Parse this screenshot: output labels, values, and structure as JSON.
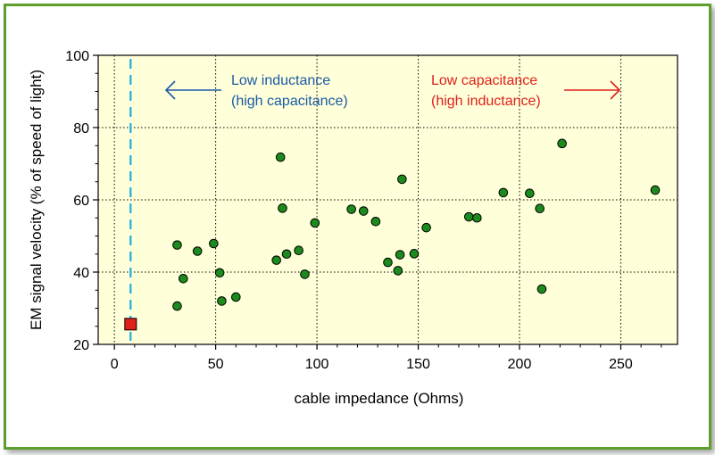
{
  "chart_data": {
    "type": "scatter",
    "xlabel": "cable impedance (Ohms)",
    "ylabel": "EM signal velocity (% of speed of light)",
    "xlim": [
      -8,
      278
    ],
    "ylim": [
      20,
      100
    ],
    "xticks": [
      0,
      50,
      100,
      150,
      200,
      250
    ],
    "yticks": [
      20,
      40,
      60,
      80,
      100
    ],
    "grid": true,
    "background_color": "#ffffd9",
    "point_color": "#1c8a1c",
    "reference": {
      "x": 8,
      "y": 25.6,
      "marker_color": "#e0201c",
      "line_color": "#1ab0e0"
    },
    "annotations": [
      {
        "lines": [
          "Low inductance",
          "(high capacitance)"
        ],
        "color": "#1a5aa8",
        "arrow": "left"
      },
      {
        "lines": [
          "Low capacitance",
          "(high inductance)"
        ],
        "color": "#e0201c",
        "arrow": "right"
      }
    ],
    "points": [
      {
        "x": 31,
        "y": 47.5
      },
      {
        "x": 31,
        "y": 30.6
      },
      {
        "x": 34,
        "y": 38.2
      },
      {
        "x": 41,
        "y": 45.8
      },
      {
        "x": 49,
        "y": 47.9
      },
      {
        "x": 52,
        "y": 39.8
      },
      {
        "x": 53,
        "y": 32.0
      },
      {
        "x": 60,
        "y": 33.1
      },
      {
        "x": 80,
        "y": 43.3
      },
      {
        "x": 82,
        "y": 71.8
      },
      {
        "x": 83,
        "y": 57.7
      },
      {
        "x": 85,
        "y": 45.0
      },
      {
        "x": 91,
        "y": 46.0
      },
      {
        "x": 94,
        "y": 39.4
      },
      {
        "x": 99,
        "y": 53.6
      },
      {
        "x": 117,
        "y": 57.4
      },
      {
        "x": 123,
        "y": 56.9
      },
      {
        "x": 129,
        "y": 54.0
      },
      {
        "x": 135,
        "y": 42.7
      },
      {
        "x": 140,
        "y": 40.4
      },
      {
        "x": 141,
        "y": 44.8
      },
      {
        "x": 142,
        "y": 65.7
      },
      {
        "x": 148,
        "y": 45.1
      },
      {
        "x": 154,
        "y": 52.3
      },
      {
        "x": 175,
        "y": 55.3
      },
      {
        "x": 179,
        "y": 55.0
      },
      {
        "x": 192,
        "y": 62.0
      },
      {
        "x": 205,
        "y": 61.8
      },
      {
        "x": 210,
        "y": 57.6
      },
      {
        "x": 211,
        "y": 35.3
      },
      {
        "x": 221,
        "y": 75.6
      },
      {
        "x": 267,
        "y": 62.7
      }
    ]
  }
}
